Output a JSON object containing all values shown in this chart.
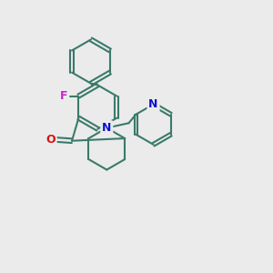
{
  "bg_color": "#ebebeb",
  "bond_color": "#3a7a6a",
  "atom_colors": {
    "F": "#cc22cc",
    "O": "#dd1111",
    "N": "#1111cc"
  },
  "bond_width": 1.5,
  "font_size_atoms": 9,
  "figsize": [
    3.0,
    3.0
  ],
  "dpi": 100
}
